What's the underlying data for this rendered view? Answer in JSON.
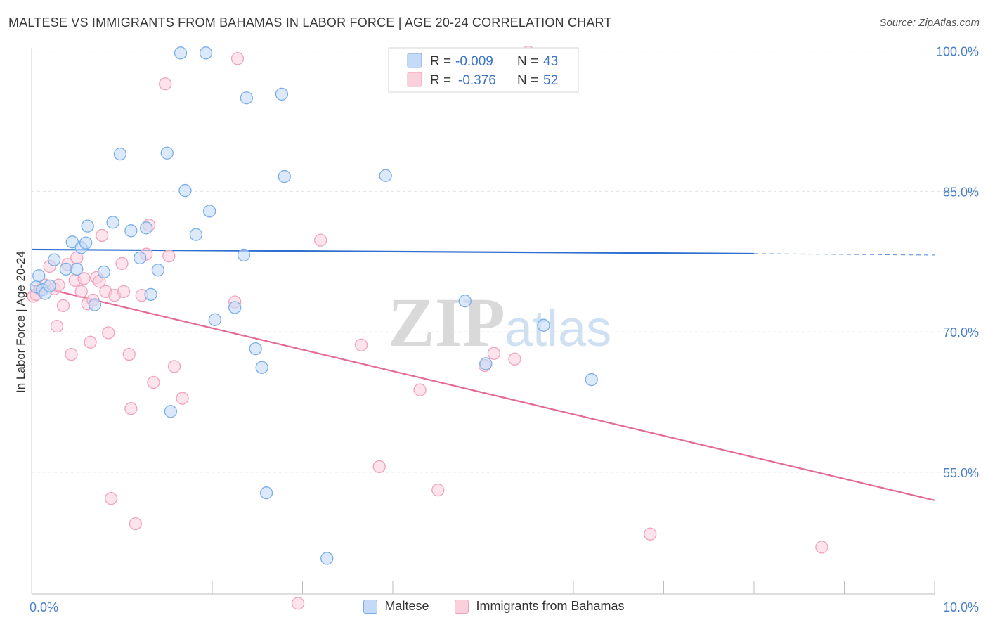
{
  "header": {
    "title": "MALTESE VS IMMIGRANTS FROM BAHAMAS IN LABOR FORCE | AGE 20-24 CORRELATION CHART",
    "source": "Source: ZipAtlas.com"
  },
  "watermark": {
    "zip": "ZIP",
    "atlas": "atlas"
  },
  "chart_data": {
    "type": "scatter",
    "title": "MALTESE VS IMMIGRANTS FROM BAHAMAS IN LABOR FORCE | AGE 20-24 CORRELATION CHART",
    "xlabel": "",
    "ylabel": "In Labor Force | Age 20-24",
    "xlim": [
      0,
      10
    ],
    "ylim": [
      42,
      102
    ],
    "x_tick_labels": [
      {
        "value": 0,
        "label": "0.0%"
      },
      {
        "value": 10,
        "label": "10.0%"
      }
    ],
    "x_minor_ticks": [
      1,
      2,
      3,
      4,
      5,
      6,
      7,
      8,
      9
    ],
    "y_ticks": [
      {
        "value": 100,
        "label": "100.0%"
      },
      {
        "value": 85,
        "label": "85.0%"
      },
      {
        "value": 70,
        "label": "70.0%"
      },
      {
        "value": 55,
        "label": "55.0%"
      }
    ],
    "grid": true,
    "legend_position": "top-center",
    "series": [
      {
        "name": "Maltese",
        "color": "#7aaee8",
        "fill": "#c5daf6",
        "line_color": "#2f6fcf",
        "stats": {
          "r_label": "R = ",
          "r": "-0.009",
          "n_label": "N = ",
          "n": "43"
        },
        "trend": {
          "x0": 0.0,
          "y0": 78.8,
          "x1": 8.0,
          "y1": 78.35,
          "dash_x1": 10.0,
          "dash_y1": 78.2
        },
        "points": [
          [
            0.05,
            74.8
          ],
          [
            0.08,
            76.0
          ],
          [
            0.12,
            74.5
          ],
          [
            0.15,
            74.1
          ],
          [
            0.2,
            74.9
          ],
          [
            0.25,
            77.7
          ],
          [
            0.38,
            76.7
          ],
          [
            0.45,
            79.6
          ],
          [
            0.5,
            76.7
          ],
          [
            0.55,
            79.0
          ],
          [
            0.6,
            79.5
          ],
          [
            0.62,
            81.3
          ],
          [
            0.7,
            72.9
          ],
          [
            0.8,
            76.4
          ],
          [
            0.9,
            81.7
          ],
          [
            0.98,
            89.0
          ],
          [
            1.1,
            80.8
          ],
          [
            1.2,
            77.9
          ],
          [
            1.27,
            81.1
          ],
          [
            1.32,
            74.0
          ],
          [
            1.4,
            76.6
          ],
          [
            1.5,
            89.1
          ],
          [
            1.54,
            61.5
          ],
          [
            1.65,
            99.8
          ],
          [
            1.7,
            85.1
          ],
          [
            1.82,
            80.4
          ],
          [
            1.93,
            99.8
          ],
          [
            1.97,
            82.9
          ],
          [
            2.03,
            71.3
          ],
          [
            2.25,
            72.6
          ],
          [
            2.35,
            78.2
          ],
          [
            2.38,
            95.0
          ],
          [
            2.48,
            68.2
          ],
          [
            2.55,
            66.2
          ],
          [
            2.6,
            52.8
          ],
          [
            2.77,
            95.4
          ],
          [
            2.8,
            86.6
          ],
          [
            3.27,
            45.8
          ],
          [
            3.92,
            86.7
          ],
          [
            4.8,
            73.3
          ],
          [
            5.03,
            66.6
          ],
          [
            5.67,
            70.7
          ],
          [
            6.2,
            64.9
          ]
        ]
      },
      {
        "name": "Immigrants from Bahamas",
        "color": "#f0a3bc",
        "fill": "#fbd0dd",
        "line_color": "#e36a98",
        "stats": {
          "r_label": "R = ",
          "r": "-0.376",
          "n_label": "N = ",
          "n": "52"
        },
        "trend": {
          "x0": 0.0,
          "y0": 75.0,
          "x1": 10.0,
          "y1": 52.0
        },
        "points": [
          [
            0.02,
            73.8
          ],
          [
            0.05,
            74.0
          ],
          [
            0.1,
            74.5
          ],
          [
            0.15,
            75.0
          ],
          [
            0.2,
            77.0
          ],
          [
            0.25,
            74.6
          ],
          [
            0.28,
            70.6
          ],
          [
            0.3,
            75.0
          ],
          [
            0.35,
            72.8
          ],
          [
            0.4,
            77.2
          ],
          [
            0.44,
            67.6
          ],
          [
            0.48,
            75.5
          ],
          [
            0.5,
            77.9
          ],
          [
            0.55,
            74.3
          ],
          [
            0.58,
            75.7
          ],
          [
            0.62,
            73.0
          ],
          [
            0.65,
            68.9
          ],
          [
            0.68,
            73.4
          ],
          [
            0.72,
            75.8
          ],
          [
            0.75,
            75.4
          ],
          [
            0.78,
            80.3
          ],
          [
            0.82,
            74.3
          ],
          [
            0.85,
            69.9
          ],
          [
            0.88,
            52.2
          ],
          [
            0.92,
            73.9
          ],
          [
            1.0,
            77.3
          ],
          [
            1.02,
            74.3
          ],
          [
            1.08,
            67.6
          ],
          [
            1.1,
            61.8
          ],
          [
            1.15,
            49.5
          ],
          [
            1.22,
            73.9
          ],
          [
            1.27,
            78.3
          ],
          [
            1.3,
            81.4
          ],
          [
            1.35,
            64.6
          ],
          [
            1.48,
            96.5
          ],
          [
            1.52,
            78.1
          ],
          [
            1.58,
            66.3
          ],
          [
            1.67,
            62.9
          ],
          [
            2.25,
            73.2
          ],
          [
            2.28,
            99.2
          ],
          [
            2.95,
            41.0
          ],
          [
            3.2,
            79.8
          ],
          [
            3.65,
            68.6
          ],
          [
            3.85,
            55.6
          ],
          [
            4.3,
            63.8
          ],
          [
            4.5,
            53.1
          ],
          [
            5.02,
            66.4
          ],
          [
            5.12,
            67.7
          ],
          [
            5.5,
            99.9
          ],
          [
            6.85,
            48.4
          ],
          [
            8.75,
            47.0
          ],
          [
            5.35,
            67.1
          ]
        ]
      }
    ]
  }
}
